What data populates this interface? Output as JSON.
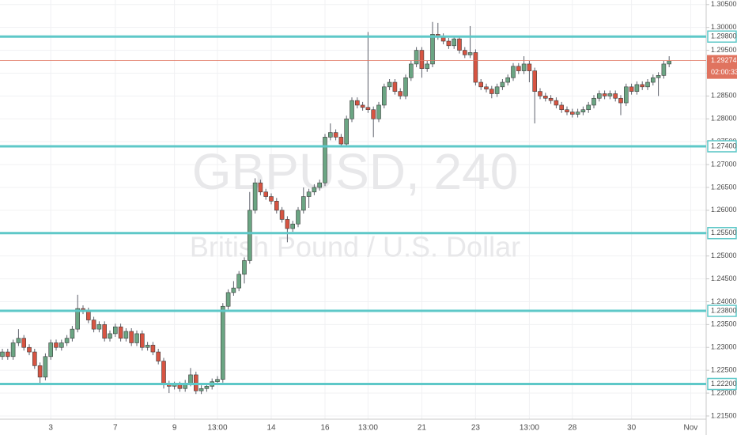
{
  "chart_data": {
    "type": "candlestick",
    "watermark_title": "GBPUSD, 240",
    "watermark_subtitle": "British Pound / U.S. Dollar",
    "categories": [
      null,
      null,
      null,
      null,
      null,
      null,
      null,
      null,
      null,
      "3",
      null,
      null,
      null,
      null,
      null,
      null,
      null,
      null,
      null,
      null,
      null,
      "7",
      null,
      null,
      null,
      null,
      null,
      null,
      null,
      null,
      null,
      null,
      "9",
      null,
      null,
      null,
      null,
      null,
      null,
      null,
      "13:00",
      null,
      null,
      null,
      null,
      null,
      null,
      null,
      null,
      null,
      "14",
      null,
      null,
      null,
      null,
      null,
      null,
      null,
      null,
      null,
      "16",
      null,
      null,
      null,
      null,
      null,
      null,
      null,
      "13:00",
      null,
      null,
      null,
      null,
      null,
      null,
      null,
      null,
      null,
      "21",
      null,
      null,
      null,
      null,
      null,
      null,
      null,
      null,
      null,
      "23",
      null,
      null,
      null,
      null,
      null,
      null,
      null,
      null,
      null,
      "13:00",
      null,
      null,
      null,
      null,
      null,
      null,
      null,
      "28",
      null,
      null,
      null,
      null,
      null,
      null,
      null,
      null,
      null,
      null,
      "30",
      null,
      null,
      null,
      null,
      null,
      null,
      null,
      null,
      null,
      null,
      "Nov"
    ],
    "open": [
      1.228,
      1.229,
      1.228,
      1.231,
      1.232,
      1.23,
      1.229,
      1.226,
      1.2235,
      1.228,
      1.231,
      1.23,
      1.231,
      1.232,
      1.234,
      1.2385,
      1.238,
      1.236,
      1.234,
      1.235,
      1.232,
      1.233,
      1.2345,
      1.232,
      1.2335,
      1.231,
      1.233,
      1.23,
      1.2305,
      1.229,
      1.227,
      1.222,
      1.2215,
      1.2218,
      1.221,
      1.2222,
      1.224,
      1.2205,
      1.221,
      1.2215,
      1.2225,
      1.223,
      1.239,
      1.242,
      1.243,
      1.246,
      1.249,
      1.26,
      1.266,
      1.264,
      1.263,
      1.262,
      1.26,
      1.258,
      1.256,
      1.257,
      1.26,
      1.263,
      1.264,
      1.265,
      1.266,
      1.276,
      1.277,
      1.276,
      1.2745,
      1.28,
      1.284,
      1.283,
      1.2825,
      1.282,
      1.28,
      1.283,
      1.287,
      1.288,
      1.286,
      1.285,
      1.289,
      1.292,
      1.295,
      1.291,
      1.292,
      1.2985,
      1.298,
      1.297,
      1.296,
      1.2975,
      1.295,
      1.294,
      1.2945,
      1.288,
      1.287,
      1.2865,
      1.2855,
      1.287,
      1.288,
      1.289,
      1.2915,
      1.2905,
      1.292,
      1.2905,
      1.286,
      1.285,
      1.2845,
      1.284,
      1.283,
      1.282,
      1.2815,
      1.281,
      1.2815,
      1.282,
      1.283,
      1.2845,
      1.2855,
      1.285,
      1.2855,
      1.2845,
      1.2835,
      1.287,
      1.286,
      1.2875,
      1.287,
      1.288,
      1.289,
      1.2895,
      1.292,
      null,
      null,
      null,
      null
    ],
    "high": [
      1.2297,
      1.2297,
      1.2317,
      1.234,
      1.2327,
      1.2307,
      1.2297,
      1.2267,
      1.2287,
      1.2317,
      1.2317,
      1.2317,
      1.2327,
      1.2347,
      1.2415,
      1.2392,
      1.2387,
      1.2367,
      1.2357,
      1.2357,
      1.2337,
      1.2352,
      1.2352,
      1.2342,
      1.2342,
      1.2337,
      1.2337,
      1.2312,
      1.2312,
      1.2297,
      1.2277,
      1.2227,
      1.2225,
      1.2225,
      1.2229,
      1.2255,
      1.2247,
      1.2217,
      1.2222,
      1.2232,
      1.2237,
      1.2397,
      1.2427,
      1.2445,
      1.2467,
      1.2497,
      1.264,
      1.267,
      1.2667,
      1.2647,
      1.2637,
      1.2627,
      1.2607,
      1.2587,
      1.2577,
      1.2607,
      1.265,
      1.2647,
      1.2657,
      1.2667,
      1.2767,
      1.279,
      1.2777,
      1.2767,
      1.2807,
      1.2847,
      1.2847,
      1.2837,
      1.299,
      1.2827,
      1.2837,
      1.2877,
      1.2887,
      1.2887,
      1.2867,
      1.2897,
      1.2927,
      1.2957,
      1.2957,
      1.2927,
      1.3012,
      1.301,
      1.2987,
      1.2977,
      1.2982,
      1.2982,
      1.2957,
      1.3003,
      1.2952,
      1.2887,
      1.2877,
      1.2872,
      1.2877,
      1.2887,
      1.2897,
      1.2922,
      1.2922,
      1.2937,
      1.2927,
      1.2912,
      1.2867,
      1.2857,
      1.2852,
      1.2847,
      1.2837,
      1.2827,
      1.2822,
      1.2822,
      1.2827,
      1.2837,
      1.2852,
      1.2862,
      1.2862,
      1.2862,
      1.2862,
      1.2852,
      1.2877,
      1.2877,
      1.2882,
      1.2882,
      1.2887,
      1.2897,
      1.2902,
      1.2927,
      1.2937,
      null,
      null,
      null,
      null
    ],
    "low": [
      1.2273,
      1.2273,
      1.2273,
      1.2303,
      1.2293,
      1.2283,
      1.2253,
      1.222,
      1.2228,
      1.2273,
      1.2293,
      1.2293,
      1.2303,
      1.2313,
      1.2333,
      1.2373,
      1.2353,
      1.2333,
      1.2333,
      1.2313,
      1.2313,
      1.2323,
      1.2313,
      1.2313,
      1.2303,
      1.2303,
      1.2293,
      1.2293,
      1.2283,
      1.2263,
      1.221,
      1.22,
      1.2208,
      1.2203,
      1.2203,
      1.2215,
      1.2198,
      1.2198,
      1.2203,
      1.2208,
      1.2218,
      1.2223,
      1.2383,
      1.2413,
      1.2423,
      1.244,
      1.2483,
      1.2593,
      1.2633,
      1.2623,
      1.2613,
      1.2593,
      1.2573,
      1.253,
      1.2553,
      1.2563,
      1.2593,
      1.2605,
      1.2633,
      1.2643,
      1.2653,
      1.2753,
      1.2753,
      1.2738,
      1.2738,
      1.2793,
      1.2823,
      1.2818,
      1.2813,
      1.276,
      1.2793,
      1.2823,
      1.2863,
      1.2853,
      1.2843,
      1.2843,
      1.2883,
      1.2913,
      1.289,
      1.2903,
      1.2913,
      1.2973,
      1.2963,
      1.2953,
      1.2953,
      1.2943,
      1.2933,
      1.2933,
      1.2873,
      1.2863,
      1.2858,
      1.2845,
      1.2848,
      1.2863,
      1.2873,
      1.2883,
      1.2898,
      1.2898,
      1.288,
      1.279,
      1.2843,
      1.2838,
      1.2833,
      1.2823,
      1.2813,
      1.2808,
      1.2803,
      1.2803,
      1.2808,
      1.2813,
      1.2823,
      1.2838,
      1.2843,
      1.2843,
      1.2838,
      1.2808,
      1.2828,
      1.2853,
      1.2853,
      1.2863,
      1.2863,
      1.2873,
      1.285,
      1.2888,
      1.2913,
      null,
      null,
      null,
      null
    ],
    "close": [
      1.229,
      1.228,
      1.231,
      1.232,
      1.23,
      1.229,
      1.226,
      1.2235,
      1.228,
      1.231,
      1.23,
      1.231,
      1.232,
      1.234,
      1.2385,
      1.238,
      1.236,
      1.234,
      1.235,
      1.232,
      1.233,
      1.2345,
      1.232,
      1.2335,
      1.231,
      1.233,
      1.23,
      1.2305,
      1.229,
      1.227,
      1.222,
      1.2215,
      1.2218,
      1.221,
      1.2222,
      1.224,
      1.2205,
      1.221,
      1.2215,
      1.2225,
      1.223,
      1.239,
      1.242,
      1.243,
      1.246,
      1.249,
      1.26,
      1.266,
      1.264,
      1.263,
      1.262,
      1.26,
      1.258,
      1.256,
      1.257,
      1.26,
      1.263,
      1.264,
      1.265,
      1.266,
      1.276,
      1.277,
      1.276,
      1.2745,
      1.28,
      1.284,
      1.283,
      1.2825,
      1.282,
      1.28,
      1.283,
      1.287,
      1.288,
      1.286,
      1.285,
      1.289,
      1.292,
      1.295,
      1.291,
      1.292,
      1.2985,
      1.298,
      1.297,
      1.296,
      1.2975,
      1.295,
      1.294,
      1.2945,
      1.288,
      1.287,
      1.2865,
      1.2855,
      1.287,
      1.288,
      1.289,
      1.2915,
      1.2905,
      1.292,
      1.2905,
      1.286,
      1.285,
      1.2845,
      1.284,
      1.283,
      1.282,
      1.2815,
      1.281,
      1.2815,
      1.282,
      1.283,
      1.2845,
      1.2855,
      1.285,
      1.2855,
      1.2845,
      1.2835,
      1.287,
      1.286,
      1.2875,
      1.287,
      1.288,
      1.289,
      1.2895,
      1.292,
      1.2927,
      null,
      null,
      null,
      null
    ],
    "up_color": "#6ba583",
    "down_color": "#d75442",
    "wick_color": "#5d606b",
    "ylim": [
      1.2143,
      1.306
    ],
    "yticks": [
      {
        "value": 1.305,
        "label": "1.30500"
      },
      {
        "value": 1.3,
        "label": "1.30000"
      },
      {
        "value": 1.295,
        "label": "1.29500"
      },
      {
        "value": 1.29,
        "label": "1.29000"
      },
      {
        "value": 1.285,
        "label": "1.28500"
      },
      {
        "value": 1.28,
        "label": "1.28000"
      },
      {
        "value": 1.275,
        "label": "1.27500"
      },
      {
        "value": 1.27,
        "label": "1.27000"
      },
      {
        "value": 1.265,
        "label": "1.26500"
      },
      {
        "value": 1.26,
        "label": "1.26000"
      },
      {
        "value": 1.255,
        "label": "1.25500"
      },
      {
        "value": 1.25,
        "label": "1.25000"
      },
      {
        "value": 1.245,
        "label": "1.24500"
      },
      {
        "value": 1.24,
        "label": "1.24000"
      },
      {
        "value": 1.235,
        "label": "1.23500"
      },
      {
        "value": 1.23,
        "label": "1.23000"
      },
      {
        "value": 1.225,
        "label": "1.22500"
      },
      {
        "value": 1.22,
        "label": "1.22000"
      },
      {
        "value": 1.215,
        "label": "1.21500"
      }
    ],
    "grid": true,
    "levels": [
      {
        "value": 1.298,
        "label": "1.29800"
      },
      {
        "value": 1.274,
        "label": "1.27400"
      },
      {
        "value": 1.255,
        "label": "1.25500"
      },
      {
        "value": 1.238,
        "label": "1.23800"
      },
      {
        "value": 1.222,
        "label": "1.22200"
      }
    ],
    "level_color": "#5ec8c8",
    "last_price": {
      "value": 1.29274,
      "label": "1.29274"
    },
    "countdown": "02:00:33",
    "last_price_color": "#e0735f"
  }
}
